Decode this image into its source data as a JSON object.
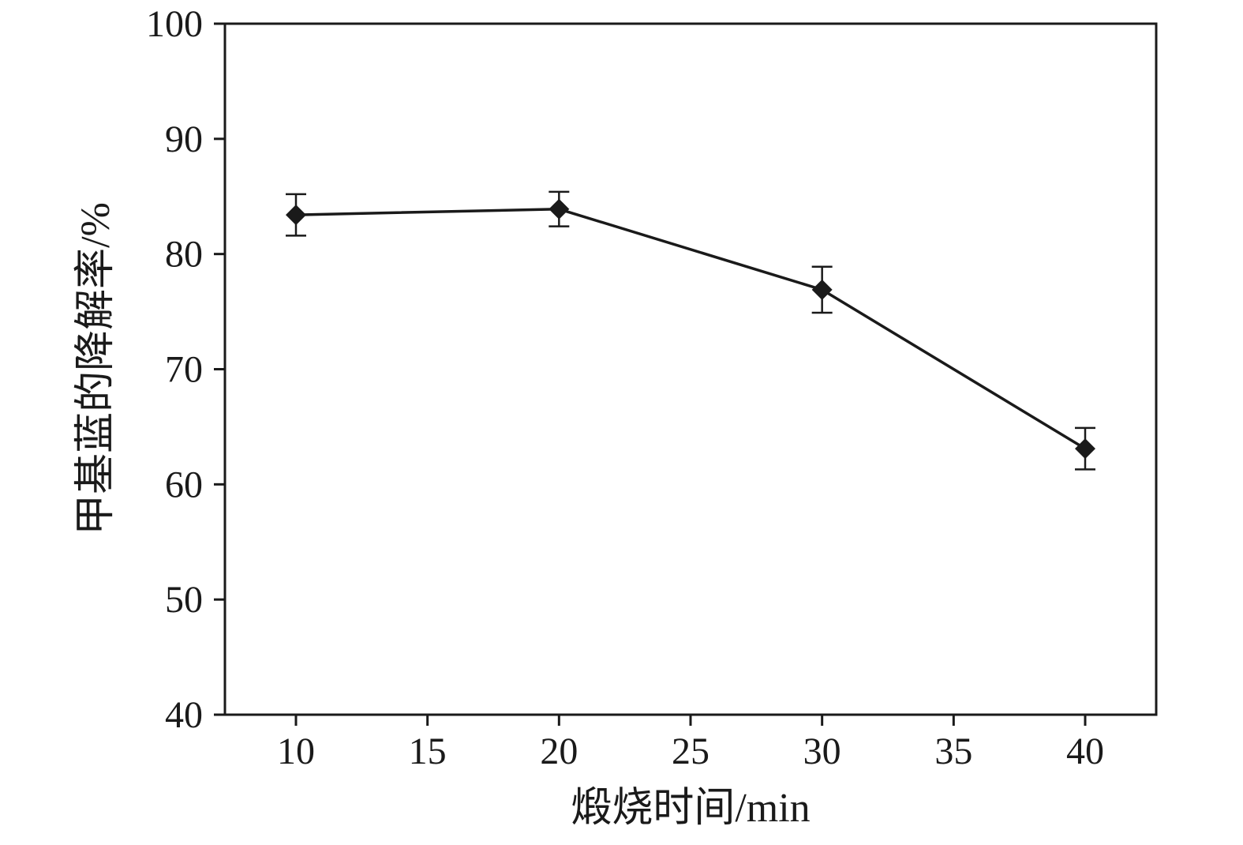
{
  "figure": {
    "background": "#ffffff"
  },
  "chart_data": {
    "type": "line",
    "x": [
      10,
      20,
      30,
      40
    ],
    "y": [
      83.4,
      83.9,
      76.9,
      63.1
    ],
    "y_err": [
      1.8,
      1.5,
      2.0,
      1.8
    ],
    "title": "",
    "xlabel": "煅烧时间/min",
    "ylabel": "甲基蓝的降解率/%",
    "xlim": [
      7.3,
      42.7
    ],
    "ylim": [
      40,
      100
    ],
    "xticks": [
      10,
      15,
      20,
      25,
      30,
      35,
      40
    ],
    "yticks": [
      40,
      50,
      60,
      70,
      80,
      90,
      100
    ],
    "grid": false,
    "legend_position": "none",
    "marker": "diamond",
    "line_color": "#1a1a1a",
    "axis_color": "#1a1a1a"
  }
}
